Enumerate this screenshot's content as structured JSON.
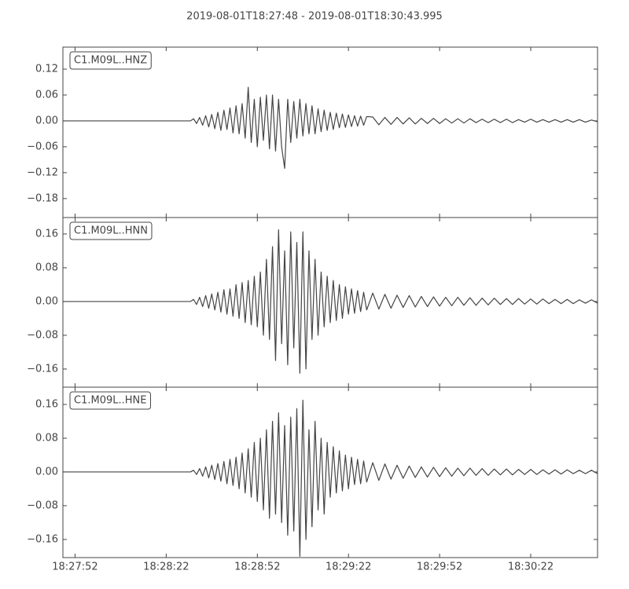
{
  "chart_data": [
    {
      "type": "line",
      "title": "2019-08-01T18:27:48  -  2019-08-01T18:30:43.995",
      "label": "C1.M09L..HNZ",
      "color": "#444444",
      "xlim": [
        0,
        175.995
      ],
      "ylim": [
        -0.224,
        0.171
      ],
      "yticks": [
        {
          "value": -0.18,
          "label": "−0.18"
        },
        {
          "value": -0.12,
          "label": "−0.12"
        },
        {
          "value": -0.06,
          "label": "−0.06"
        },
        {
          "value": 0,
          "label": "0.00"
        },
        {
          "value": 0.06,
          "label": "0.06"
        },
        {
          "value": 0.12,
          "label": "0.12"
        }
      ],
      "x": [
        0,
        42,
        43,
        44,
        45,
        46,
        47,
        48,
        49,
        50,
        51,
        52,
        53,
        54,
        55,
        56,
        57,
        58,
        59,
        60,
        61,
        62,
        63,
        64,
        65,
        66,
        67,
        68,
        69,
        70,
        71,
        72,
        73,
        74,
        75,
        76,
        77,
        78,
        79,
        80,
        81,
        82,
        83,
        84,
        85,
        86,
        87,
        88,
        89,
        90,
        91,
        92,
        93,
        94,
        95,
        96,
        97,
        98,
        99,
        100,
        102,
        104,
        106,
        108,
        110,
        112,
        114,
        116,
        118,
        120,
        122,
        124,
        126,
        128,
        130,
        132,
        134,
        136,
        138,
        140,
        142,
        144,
        146,
        148,
        150,
        152,
        154,
        156,
        158,
        160,
        162,
        164,
        166,
        168,
        170,
        172,
        174,
        176
      ],
      "values": [
        0,
        0,
        0.005,
        -0.006,
        0.008,
        -0.01,
        0.012,
        -0.014,
        0.015,
        -0.018,
        0.02,
        -0.022,
        0.025,
        -0.02,
        0.03,
        -0.028,
        0.035,
        -0.03,
        0.04,
        -0.04,
        0.078,
        -0.05,
        0.05,
        -0.06,
        0.055,
        -0.045,
        0.06,
        -0.065,
        0.06,
        -0.07,
        0.05,
        -0.06,
        -0.11,
        0.05,
        -0.05,
        0.045,
        -0.04,
        0.05,
        -0.035,
        0.04,
        -0.03,
        0.035,
        -0.03,
        0.028,
        -0.025,
        0.025,
        -0.022,
        0.02,
        -0.02,
        0.018,
        -0.016,
        0.016,
        -0.015,
        0.014,
        -0.013,
        0.012,
        -0.012,
        0.011,
        -0.01,
        0.01,
        0.009,
        -0.009,
        0.008,
        -0.008,
        0.008,
        -0.007,
        0.007,
        -0.007,
        0.006,
        -0.006,
        0.006,
        -0.006,
        0.005,
        -0.005,
        0.005,
        -0.005,
        0.005,
        -0.004,
        0.004,
        -0.004,
        0.004,
        -0.004,
        0.004,
        -0.004,
        0.003,
        -0.003,
        0.004,
        -0.003,
        0.003,
        -0.003,
        0.003,
        -0.003,
        0.003,
        -0.003,
        0.003,
        -0.003,
        0.002,
        -0.002
      ]
    },
    {
      "type": "line",
      "label": "C1.M09L..HNN",
      "color": "#444444",
      "xlim": [
        0,
        175.995
      ],
      "ylim": [
        -0.203,
        0.199
      ],
      "yticks": [
        {
          "value": -0.16,
          "label": "−0.16"
        },
        {
          "value": -0.08,
          "label": "−0.08"
        },
        {
          "value": 0,
          "label": "0.00"
        },
        {
          "value": 0.08,
          "label": "0.08"
        },
        {
          "value": 0.16,
          "label": "0.16"
        }
      ],
      "x": [
        0,
        42,
        43,
        44,
        45,
        46,
        47,
        48,
        49,
        50,
        51,
        52,
        53,
        54,
        55,
        56,
        57,
        58,
        59,
        60,
        61,
        62,
        63,
        64,
        65,
        66,
        67,
        68,
        69,
        70,
        71,
        72,
        73,
        74,
        75,
        76,
        77,
        78,
        79,
        80,
        81,
        82,
        83,
        84,
        85,
        86,
        87,
        88,
        89,
        90,
        91,
        92,
        93,
        94,
        95,
        96,
        97,
        98,
        99,
        100,
        102,
        104,
        106,
        108,
        110,
        112,
        114,
        116,
        118,
        120,
        122,
        124,
        126,
        128,
        130,
        132,
        134,
        136,
        138,
        140,
        142,
        144,
        146,
        148,
        150,
        152,
        154,
        156,
        158,
        160,
        162,
        164,
        166,
        168,
        170,
        172,
        174,
        176
      ],
      "values": [
        0,
        0,
        0.005,
        -0.007,
        0.01,
        -0.012,
        0.014,
        -0.016,
        0.018,
        -0.02,
        0.022,
        -0.025,
        0.028,
        -0.03,
        0.03,
        -0.035,
        0.04,
        -0.04,
        0.045,
        -0.05,
        0.05,
        -0.055,
        0.06,
        -0.06,
        0.07,
        -0.08,
        0.1,
        -0.09,
        0.13,
        -0.14,
        0.17,
        -0.1,
        0.12,
        -0.15,
        0.165,
        -0.11,
        0.14,
        -0.17,
        0.165,
        -0.16,
        0.12,
        -0.09,
        0.1,
        -0.08,
        0.07,
        -0.06,
        0.06,
        -0.05,
        0.05,
        -0.045,
        0.04,
        -0.04,
        0.035,
        -0.03,
        0.03,
        -0.028,
        0.026,
        -0.024,
        0.022,
        -0.02,
        0.02,
        -0.018,
        0.017,
        -0.016,
        0.015,
        -0.014,
        0.014,
        -0.013,
        0.012,
        -0.012,
        0.011,
        -0.011,
        0.01,
        -0.01,
        0.01,
        -0.009,
        0.009,
        -0.009,
        0.008,
        -0.008,
        0.008,
        -0.007,
        0.007,
        -0.007,
        0.007,
        -0.006,
        0.006,
        -0.006,
        0.006,
        -0.005,
        0.005,
        -0.005,
        0.005,
        -0.005,
        0.004,
        -0.004,
        0.004,
        -0.004
      ]
    },
    {
      "type": "line",
      "label": "C1.M09L..HNE",
      "color": "#444444",
      "xlim": [
        0,
        175.995
      ],
      "ylim": [
        -0.203,
        0.201
      ],
      "yticks": [
        {
          "value": -0.16,
          "label": "−0.16"
        },
        {
          "value": -0.08,
          "label": "−0.08"
        },
        {
          "value": 0,
          "label": "0.00"
        },
        {
          "value": 0.08,
          "label": "0.08"
        },
        {
          "value": 0.16,
          "label": "0.16"
        }
      ],
      "xticks": [
        {
          "value": 4,
          "label": "18:27:52"
        },
        {
          "value": 34,
          "label": "18:28:22"
        },
        {
          "value": 64,
          "label": "18:28:52"
        },
        {
          "value": 94,
          "label": "18:29:22"
        },
        {
          "value": 124,
          "label": "18:29:52"
        },
        {
          "value": 154,
          "label": "18:30:22"
        }
      ],
      "x": [
        0,
        42,
        43,
        44,
        45,
        46,
        47,
        48,
        49,
        50,
        51,
        52,
        53,
        54,
        55,
        56,
        57,
        58,
        59,
        60,
        61,
        62,
        63,
        64,
        65,
        66,
        67,
        68,
        69,
        70,
        71,
        72,
        73,
        74,
        75,
        76,
        77,
        78,
        79,
        80,
        81,
        82,
        83,
        84,
        85,
        86,
        87,
        88,
        89,
        90,
        91,
        92,
        93,
        94,
        95,
        96,
        97,
        98,
        99,
        100,
        102,
        104,
        106,
        108,
        110,
        112,
        114,
        116,
        118,
        120,
        122,
        124,
        126,
        128,
        130,
        132,
        134,
        136,
        138,
        140,
        142,
        144,
        146,
        148,
        150,
        152,
        154,
        156,
        158,
        160,
        162,
        164,
        166,
        168,
        170,
        172,
        174,
        176
      ],
      "values": [
        0,
        0,
        0.004,
        -0.006,
        0.008,
        -0.01,
        0.012,
        -0.014,
        0.016,
        -0.018,
        0.02,
        -0.022,
        0.025,
        -0.028,
        0.03,
        -0.032,
        0.035,
        -0.04,
        0.045,
        -0.05,
        0.055,
        -0.06,
        0.07,
        -0.07,
        0.08,
        -0.09,
        0.1,
        -0.11,
        0.12,
        -0.1,
        0.14,
        -0.12,
        0.11,
        -0.15,
        0.13,
        -0.14,
        0.15,
        -0.2,
        0.17,
        -0.16,
        0.1,
        -0.13,
        0.12,
        -0.09,
        0.08,
        -0.1,
        0.07,
        -0.06,
        0.06,
        -0.05,
        0.05,
        -0.045,
        0.04,
        -0.04,
        0.035,
        -0.03,
        0.03,
        -0.028,
        0.026,
        -0.024,
        0.022,
        -0.02,
        0.019,
        -0.017,
        0.016,
        -0.015,
        0.014,
        -0.013,
        0.012,
        -0.012,
        0.011,
        -0.011,
        0.01,
        -0.01,
        0.009,
        -0.009,
        0.009,
        -0.008,
        0.008,
        -0.008,
        0.007,
        -0.007,
        0.007,
        -0.007,
        0.006,
        -0.006,
        0.006,
        -0.006,
        0.005,
        -0.005,
        0.005,
        -0.005,
        0.005,
        -0.004,
        0.004,
        -0.004,
        0.004,
        -0.004
      ]
    }
  ]
}
